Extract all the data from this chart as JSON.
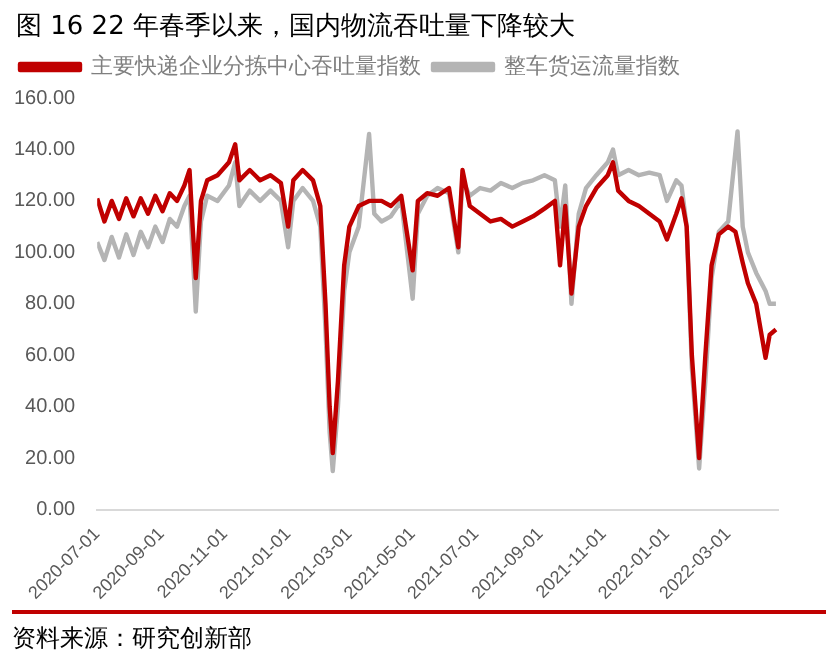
{
  "chart_data": {
    "type": "line",
    "title": "图 16 22 年春季以来，国内物流吞吐量下降较大",
    "annotations": [
      "资料来源：研究创新部"
    ],
    "xlim": [
      "2020-07-01",
      "2022-04-18"
    ],
    "xticks": [
      "2020-07-01",
      "2020-09-01",
      "2020-11-01",
      "2021-01-01",
      "2021-03-01",
      "2021-05-01",
      "2021-07-01",
      "2021-09-01",
      "2021-11-01",
      "2022-01-01",
      "2022-03-01"
    ],
    "ylim": [
      0,
      160
    ],
    "yticks": [
      {
        "value": 0,
        "label": "0.00"
      },
      {
        "value": 20,
        "label": "20.00"
      },
      {
        "value": 40,
        "label": "40.00"
      },
      {
        "value": 60,
        "label": "60.00"
      },
      {
        "value": 80,
        "label": "80.00"
      },
      {
        "value": 100,
        "label": "100.00"
      },
      {
        "value": 120,
        "label": "120.00"
      },
      {
        "value": 140,
        "label": "140.00"
      },
      {
        "value": 160,
        "label": "160.00"
      }
    ],
    "grid": false,
    "legend": "top",
    "marker": "none",
    "line_style": "solid",
    "series": [
      {
        "name": "整车货运流量指数",
        "color": "#b4b4b4",
        "x": [
          "2020-07-01",
          "2020-07-08",
          "2020-07-15",
          "2020-07-22",
          "2020-07-29",
          "2020-08-05",
          "2020-08-12",
          "2020-08-19",
          "2020-08-26",
          "2020-09-02",
          "2020-09-09",
          "2020-09-16",
          "2020-09-23",
          "2020-09-28",
          "2020-10-01",
          "2020-10-04",
          "2020-10-09",
          "2020-10-15",
          "2020-10-25",
          "2020-11-05",
          "2020-11-11",
          "2020-11-15",
          "2020-11-25",
          "2020-12-05",
          "2020-12-15",
          "2020-12-25",
          "2021-01-01",
          "2021-01-06",
          "2021-01-15",
          "2021-01-25",
          "2021-02-01",
          "2021-02-06",
          "2021-02-10",
          "2021-02-13",
          "2021-02-18",
          "2021-02-24",
          "2021-03-01",
          "2021-03-10",
          "2021-03-20",
          "2021-03-25",
          "2021-04-01",
          "2021-04-10",
          "2021-04-20",
          "2021-05-01",
          "2021-05-06",
          "2021-05-15",
          "2021-05-25",
          "2021-06-05",
          "2021-06-14",
          "2021-06-18",
          "2021-06-25",
          "2021-07-05",
          "2021-07-15",
          "2021-07-25",
          "2021-08-05",
          "2021-08-15",
          "2021-08-25",
          "2021-09-05",
          "2021-09-15",
          "2021-09-20",
          "2021-09-25",
          "2021-10-01",
          "2021-10-08",
          "2021-10-15",
          "2021-10-25",
          "2021-11-05",
          "2021-11-10",
          "2021-11-15",
          "2021-11-25",
          "2021-12-05",
          "2021-12-15",
          "2021-12-25",
          "2022-01-01",
          "2022-01-10",
          "2022-01-15",
          "2022-01-20",
          "2022-01-25",
          "2022-02-01",
          "2022-02-07",
          "2022-02-13",
          "2022-02-20",
          "2022-03-01",
          "2022-03-10",
          "2022-03-15",
          "2022-03-20",
          "2022-03-28",
          "2022-04-06",
          "2022-04-10",
          "2022-04-16"
        ],
        "values": [
          104,
          97,
          106,
          98,
          107,
          99,
          108,
          102,
          110,
          104,
          113,
          110,
          118,
          122,
          100,
          77,
          112,
          122,
          120,
          126,
          135,
          118,
          124,
          120,
          124,
          120,
          102,
          120,
          125,
          120,
          110,
          70,
          30,
          15,
          40,
          85,
          100,
          110,
          146,
          115,
          112,
          114,
          120,
          82,
          115,
          122,
          125,
          123,
          100,
          128,
          122,
          125,
          124,
          127,
          125,
          127,
          128,
          130,
          128,
          110,
          126,
          80,
          115,
          125,
          130,
          135,
          140,
          130,
          132,
          130,
          131,
          130,
          120,
          128,
          126,
          110,
          55,
          16,
          50,
          90,
          108,
          112,
          147,
          110,
          100,
          92,
          85,
          80,
          80
        ]
      },
      {
        "name": "主要快递企业分拣中心吞吐量指数",
        "color": "#c00000",
        "x": [
          "2020-07-01",
          "2020-07-08",
          "2020-07-15",
          "2020-07-22",
          "2020-07-29",
          "2020-08-05",
          "2020-08-12",
          "2020-08-19",
          "2020-08-26",
          "2020-09-02",
          "2020-09-09",
          "2020-09-16",
          "2020-09-23",
          "2020-09-28",
          "2020-10-01",
          "2020-10-04",
          "2020-10-09",
          "2020-10-15",
          "2020-10-25",
          "2020-11-05",
          "2020-11-11",
          "2020-11-15",
          "2020-11-25",
          "2020-12-05",
          "2020-12-15",
          "2020-12-25",
          "2021-01-01",
          "2021-01-06",
          "2021-01-15",
          "2021-01-25",
          "2021-02-01",
          "2021-02-06",
          "2021-02-10",
          "2021-02-13",
          "2021-02-18",
          "2021-02-24",
          "2021-03-01",
          "2021-03-10",
          "2021-03-20",
          "2021-04-01",
          "2021-04-10",
          "2021-04-20",
          "2021-05-01",
          "2021-05-06",
          "2021-05-15",
          "2021-05-25",
          "2021-06-05",
          "2021-06-14",
          "2021-06-18",
          "2021-06-25",
          "2021-07-05",
          "2021-07-15",
          "2021-07-25",
          "2021-08-05",
          "2021-08-15",
          "2021-08-25",
          "2021-09-05",
          "2021-09-15",
          "2021-09-20",
          "2021-09-25",
          "2021-10-01",
          "2021-10-08",
          "2021-10-15",
          "2021-10-25",
          "2021-11-05",
          "2021-11-10",
          "2021-11-15",
          "2021-11-25",
          "2021-12-05",
          "2021-12-15",
          "2021-12-25",
          "2022-01-01",
          "2022-01-10",
          "2022-01-15",
          "2022-01-20",
          "2022-01-25",
          "2022-02-01",
          "2022-02-07",
          "2022-02-13",
          "2022-02-20",
          "2022-03-01",
          "2022-03-08",
          "2022-03-15",
          "2022-03-20",
          "2022-03-28",
          "2022-04-06",
          "2022-04-10",
          "2022-04-16"
        ],
        "values": [
          121,
          112,
          120,
          113,
          121,
          114,
          121,
          115,
          122,
          116,
          123,
          120,
          126,
          132,
          110,
          90,
          120,
          128,
          130,
          135,
          142,
          128,
          132,
          128,
          130,
          127,
          110,
          128,
          132,
          128,
          118,
          80,
          40,
          22,
          50,
          95,
          110,
          118,
          120,
          120,
          118,
          122,
          93,
          120,
          123,
          122,
          125,
          102,
          132,
          118,
          115,
          112,
          113,
          110,
          112,
          114,
          117,
          120,
          95,
          118,
          84,
          110,
          118,
          125,
          130,
          135,
          124,
          120,
          118,
          115,
          112,
          105,
          115,
          121,
          110,
          60,
          20,
          60,
          95,
          107,
          110,
          108,
          96,
          88,
          80,
          59,
          68,
          70
        ]
      }
    ]
  }
}
